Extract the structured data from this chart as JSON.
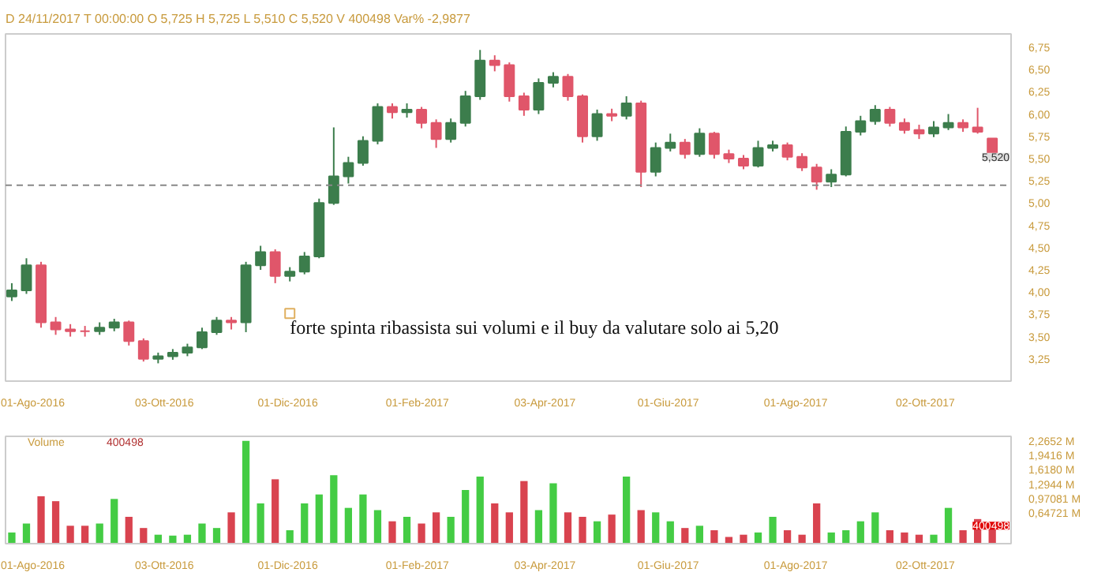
{
  "chart_data": [
    {
      "type": "candlestick",
      "annotations": [
        "D 24/11/2017  T 00:00:00  O 5,725  H 5,725  L 5,510  C 5,520  V 400498  Var% -2,9877",
        {
          "text": "forte spinta ribassista sui volumi e il buy da valutare solo ai 5,20",
          "x": "2016-12-02",
          "y": 3.76
        },
        {
          "text": "5,520",
          "x": "2017-11-03",
          "y": 5.52
        }
      ],
      "x": [
        "2016-07-22",
        "2016-07-29",
        "2016-08-05",
        "2016-08-12",
        "2016-08-19",
        "2016-08-26",
        "2016-09-02",
        "2016-09-09",
        "2016-09-16",
        "2016-09-23",
        "2016-09-30",
        "2016-10-07",
        "2016-10-14",
        "2016-10-21",
        "2016-10-28",
        "2016-11-04",
        "2016-11-11",
        "2016-11-18",
        "2016-11-25",
        "2016-12-02",
        "2016-12-09",
        "2016-12-16",
        "2016-12-23",
        "2016-12-30",
        "2017-01-06",
        "2017-01-13",
        "2017-01-20",
        "2017-01-27",
        "2017-02-03",
        "2017-02-10",
        "2017-02-17",
        "2017-02-24",
        "2017-03-03",
        "2017-03-10",
        "2017-03-17",
        "2017-03-24",
        "2017-03-31",
        "2017-04-07",
        "2017-04-14",
        "2017-04-21",
        "2017-04-28",
        "2017-05-05",
        "2017-05-12",
        "2017-05-19",
        "2017-05-26",
        "2017-06-02",
        "2017-06-09",
        "2017-06-16",
        "2017-06-23",
        "2017-06-30",
        "2017-07-07",
        "2017-07-14",
        "2017-07-21",
        "2017-07-28",
        "2017-08-04",
        "2017-08-11",
        "2017-08-18",
        "2017-08-25",
        "2017-09-01",
        "2017-09-08",
        "2017-09-15",
        "2017-09-22",
        "2017-09-29",
        "2017-10-06",
        "2017-10-13",
        "2017-10-20",
        "2017-10-27",
        "2017-11-03"
      ],
      "ohlc": [
        [
          3.95,
          4.1,
          3.9,
          4.02
        ],
        [
          4.02,
          4.38,
          3.98,
          4.3
        ],
        [
          4.3,
          4.34,
          3.6,
          3.66
        ],
        [
          3.66,
          3.72,
          3.52,
          3.58
        ],
        [
          3.58,
          3.64,
          3.5,
          3.56
        ],
        [
          3.56,
          3.62,
          3.5,
          3.56
        ],
        [
          3.56,
          3.66,
          3.52,
          3.6
        ],
        [
          3.6,
          3.7,
          3.56,
          3.66
        ],
        [
          3.66,
          3.68,
          3.4,
          3.45
        ],
        [
          3.45,
          3.48,
          3.22,
          3.25
        ],
        [
          3.25,
          3.32,
          3.2,
          3.28
        ],
        [
          3.28,
          3.36,
          3.24,
          3.32
        ],
        [
          3.32,
          3.42,
          3.28,
          3.38
        ],
        [
          3.38,
          3.6,
          3.36,
          3.55
        ],
        [
          3.55,
          3.72,
          3.52,
          3.68
        ],
        [
          3.68,
          3.72,
          3.58,
          3.66
        ],
        [
          3.66,
          4.34,
          3.55,
          4.3
        ],
        [
          4.3,
          4.52,
          4.25,
          4.45
        ],
        [
          4.45,
          4.48,
          4.1,
          4.18
        ],
        [
          4.18,
          4.28,
          4.12,
          4.23
        ],
        [
          4.23,
          4.45,
          4.2,
          4.4
        ],
        [
          4.4,
          5.05,
          4.38,
          5.0
        ],
        [
          5.0,
          5.85,
          4.98,
          5.3
        ],
        [
          5.3,
          5.52,
          5.22,
          5.45
        ],
        [
          5.45,
          5.75,
          5.42,
          5.7
        ],
        [
          5.7,
          6.12,
          5.66,
          6.08
        ],
        [
          6.08,
          6.12,
          5.95,
          6.02
        ],
        [
          6.02,
          6.12,
          5.96,
          6.05
        ],
        [
          6.05,
          6.08,
          5.84,
          5.9
        ],
        [
          5.9,
          5.94,
          5.62,
          5.72
        ],
        [
          5.72,
          5.95,
          5.68,
          5.9
        ],
        [
          5.9,
          6.26,
          5.86,
          6.2
        ],
        [
          6.2,
          6.72,
          6.16,
          6.6
        ],
        [
          6.6,
          6.66,
          6.48,
          6.55
        ],
        [
          6.55,
          6.58,
          6.14,
          6.2
        ],
        [
          6.2,
          6.24,
          5.98,
          6.05
        ],
        [
          6.05,
          6.4,
          6.0,
          6.35
        ],
        [
          6.35,
          6.47,
          6.3,
          6.42
        ],
        [
          6.42,
          6.45,
          6.15,
          6.2
        ],
        [
          6.2,
          6.22,
          5.68,
          5.75
        ],
        [
          5.75,
          6.05,
          5.7,
          6.0
        ],
        [
          6.0,
          6.06,
          5.92,
          5.98
        ],
        [
          5.98,
          6.2,
          5.94,
          6.12
        ],
        [
          6.12,
          6.15,
          5.18,
          5.35
        ],
        [
          5.35,
          5.68,
          5.3,
          5.62
        ],
        [
          5.62,
          5.78,
          5.58,
          5.68
        ],
        [
          5.68,
          5.72,
          5.5,
          5.55
        ],
        [
          5.55,
          5.84,
          5.52,
          5.78
        ],
        [
          5.78,
          5.8,
          5.5,
          5.55
        ],
        [
          5.55,
          5.6,
          5.45,
          5.5
        ],
        [
          5.5,
          5.54,
          5.38,
          5.42
        ],
        [
          5.42,
          5.7,
          5.4,
          5.62
        ],
        [
          5.62,
          5.7,
          5.58,
          5.65
        ],
        [
          5.65,
          5.68,
          5.48,
          5.52
        ],
        [
          5.52,
          5.56,
          5.36,
          5.4
        ],
        [
          5.4,
          5.44,
          5.15,
          5.24
        ],
        [
          5.24,
          5.38,
          5.18,
          5.32
        ],
        [
          5.32,
          5.86,
          5.3,
          5.8
        ],
        [
          5.8,
          5.98,
          5.76,
          5.92
        ],
        [
          5.92,
          6.1,
          5.88,
          6.05
        ],
        [
          6.05,
          6.08,
          5.86,
          5.9
        ],
        [
          5.9,
          5.95,
          5.78,
          5.82
        ],
        [
          5.82,
          5.88,
          5.72,
          5.78
        ],
        [
          5.78,
          5.92,
          5.74,
          5.85
        ],
        [
          5.85,
          6.0,
          5.82,
          5.9
        ],
        [
          5.9,
          5.94,
          5.8,
          5.85
        ],
        [
          5.85,
          6.07,
          5.78,
          5.8
        ],
        [
          5.725,
          5.725,
          5.51,
          5.52
        ]
      ],
      "colors": [
        "#3c7d4c",
        "#3c7d4c",
        "#e0566a",
        "#e0566a",
        "#e0566a",
        "#e0566a",
        "#3c7d4c",
        "#3c7d4c",
        "#e0566a",
        "#e0566a",
        "#3c7d4c",
        "#3c7d4c",
        "#3c7d4c",
        "#3c7d4c",
        "#3c7d4c",
        "#e0566a",
        "#3c7d4c",
        "#3c7d4c",
        "#e0566a",
        "#3c7d4c",
        "#3c7d4c",
        "#3c7d4c",
        "#3c7d4c",
        "#3c7d4c",
        "#3c7d4c",
        "#3c7d4c",
        "#e0566a",
        "#3c7d4c",
        "#e0566a",
        "#e0566a",
        "#3c7d4c",
        "#3c7d4c",
        "#3c7d4c",
        "#e0566a",
        "#e0566a",
        "#e0566a",
        "#3c7d4c",
        "#3c7d4c",
        "#e0566a",
        "#e0566a",
        "#3c7d4c",
        "#e0566a",
        "#3c7d4c",
        "#e0566a",
        "#3c7d4c",
        "#3c7d4c",
        "#e0566a",
        "#3c7d4c",
        "#e0566a",
        "#e0566a",
        "#e0566a",
        "#3c7d4c",
        "#3c7d4c",
        "#e0566a",
        "#e0566a",
        "#e0566a",
        "#3c7d4c",
        "#3c7d4c",
        "#3c7d4c",
        "#3c7d4c",
        "#e0566a",
        "#e0566a",
        "#e0566a",
        "#3c7d4c",
        "#3c7d4c",
        "#e0566a",
        "#e0566a",
        "#e0566a"
      ],
      "xlim": [
        "2016-07-19",
        "2017-11-12"
      ],
      "xticks": [
        {
          "value": "2016-08-01",
          "label": "01-Ago-2016"
        },
        {
          "value": "2016-10-03",
          "label": "03-Ott-2016"
        },
        {
          "value": "2016-12-01",
          "label": "01-Dic-2016"
        },
        {
          "value": "2017-02-01",
          "label": "01-Feb-2017"
        },
        {
          "value": "2017-04-03",
          "label": "03-Apr-2017"
        },
        {
          "value": "2017-06-01",
          "label": "01-Giu-2017"
        },
        {
          "value": "2017-08-01",
          "label": "01-Ago-2017"
        },
        {
          "value": "2017-10-02",
          "label": "02-Ott-2017"
        }
      ],
      "ylim": [
        3.0,
        6.9
      ],
      "yticks": [
        {
          "value": 3.25,
          "label": "3,25"
        },
        {
          "value": 3.5,
          "label": "3,50"
        },
        {
          "value": 3.75,
          "label": "3,75"
        },
        {
          "value": 4.0,
          "label": "4,00"
        },
        {
          "value": 4.25,
          "label": "4,25"
        },
        {
          "value": 4.5,
          "label": "4,50"
        },
        {
          "value": 4.75,
          "label": "4,75"
        },
        {
          "value": 5.0,
          "label": "5,00"
        },
        {
          "value": 5.25,
          "label": "5,25"
        },
        {
          "value": 5.5,
          "label": "5,50"
        },
        {
          "value": 5.75,
          "label": "5,75"
        },
        {
          "value": 6.0,
          "label": "6,00"
        },
        {
          "value": 6.25,
          "label": "6,25"
        },
        {
          "value": 6.5,
          "label": "6,50"
        },
        {
          "value": 6.75,
          "label": "6,75"
        }
      ],
      "ref_lines": [
        {
          "axis": "y",
          "value": 5.2,
          "color": "#888888",
          "line_style": "dashed"
        }
      ]
    },
    {
      "type": "bar",
      "annotations": [
        "Volume",
        "400498",
        {
          "text": "400498",
          "x": "2017-11-03",
          "y": 0.4
        }
      ],
      "x": [
        "2016-07-22",
        "2016-07-29",
        "2016-08-05",
        "2016-08-12",
        "2016-08-19",
        "2016-08-26",
        "2016-09-02",
        "2016-09-09",
        "2016-09-16",
        "2016-09-23",
        "2016-09-30",
        "2016-10-07",
        "2016-10-14",
        "2016-10-21",
        "2016-10-28",
        "2016-11-04",
        "2016-11-11",
        "2016-11-18",
        "2016-11-25",
        "2016-12-02",
        "2016-12-09",
        "2016-12-16",
        "2016-12-23",
        "2016-12-30",
        "2017-01-06",
        "2017-01-13",
        "2017-01-20",
        "2017-01-27",
        "2017-02-03",
        "2017-02-10",
        "2017-02-17",
        "2017-02-24",
        "2017-03-03",
        "2017-03-10",
        "2017-03-17",
        "2017-03-24",
        "2017-03-31",
        "2017-04-07",
        "2017-04-14",
        "2017-04-21",
        "2017-04-28",
        "2017-05-05",
        "2017-05-12",
        "2017-05-19",
        "2017-05-26",
        "2017-06-02",
        "2017-06-09",
        "2017-06-16",
        "2017-06-23",
        "2017-06-30",
        "2017-07-07",
        "2017-07-14",
        "2017-07-21",
        "2017-07-28",
        "2017-08-04",
        "2017-08-11",
        "2017-08-18",
        "2017-08-25",
        "2017-09-01",
        "2017-09-08",
        "2017-09-15",
        "2017-09-22",
        "2017-09-29",
        "2017-10-06",
        "2017-10-13",
        "2017-10-20",
        "2017-10-27",
        "2017-11-03"
      ],
      "values": [
        0.25,
        0.45,
        1.06,
        0.95,
        0.4,
        0.4,
        0.45,
        1.0,
        0.6,
        0.35,
        0.2,
        0.18,
        0.2,
        0.45,
        0.35,
        0.7,
        2.3,
        0.9,
        1.44,
        0.3,
        0.9,
        1.1,
        1.53,
        0.8,
        1.1,
        0.75,
        0.5,
        0.6,
        0.45,
        0.7,
        0.6,
        1.2,
        1.5,
        0.9,
        0.7,
        1.4,
        0.75,
        1.35,
        0.7,
        0.6,
        0.5,
        0.65,
        1.5,
        0.75,
        0.7,
        0.5,
        0.35,
        0.4,
        0.3,
        0.15,
        0.2,
        0.25,
        0.6,
        0.3,
        0.2,
        0.9,
        0.25,
        0.3,
        0.5,
        0.7,
        0.3,
        0.25,
        0.2,
        0.2,
        0.8,
        0.3,
        0.55,
        0.4
      ],
      "colors": [
        "#44cc44",
        "#44cc44",
        "#d9434f",
        "#d9434f",
        "#d9434f",
        "#d9434f",
        "#44cc44",
        "#44cc44",
        "#d9434f",
        "#d9434f",
        "#44cc44",
        "#44cc44",
        "#44cc44",
        "#44cc44",
        "#44cc44",
        "#d9434f",
        "#44cc44",
        "#44cc44",
        "#d9434f",
        "#44cc44",
        "#44cc44",
        "#44cc44",
        "#44cc44",
        "#44cc44",
        "#44cc44",
        "#44cc44",
        "#d9434f",
        "#44cc44",
        "#d9434f",
        "#d9434f",
        "#44cc44",
        "#44cc44",
        "#44cc44",
        "#d9434f",
        "#d9434f",
        "#d9434f",
        "#44cc44",
        "#44cc44",
        "#d9434f",
        "#d9434f",
        "#44cc44",
        "#d9434f",
        "#44cc44",
        "#d9434f",
        "#44cc44",
        "#44cc44",
        "#d9434f",
        "#44cc44",
        "#d9434f",
        "#d9434f",
        "#d9434f",
        "#44cc44",
        "#44cc44",
        "#d9434f",
        "#d9434f",
        "#d9434f",
        "#44cc44",
        "#44cc44",
        "#44cc44",
        "#44cc44",
        "#d9434f",
        "#d9434f",
        "#d9434f",
        "#44cc44",
        "#44cc44",
        "#d9434f",
        "#d9434f",
        "#d9434f"
      ],
      "xlim": [
        "2016-07-19",
        "2017-11-12"
      ],
      "xticks": [
        {
          "value": "2016-08-01",
          "label": "01-Ago-2016"
        },
        {
          "value": "2016-10-03",
          "label": "03-Ott-2016"
        },
        {
          "value": "2016-12-01",
          "label": "01-Dic-2016"
        },
        {
          "value": "2017-02-01",
          "label": "01-Feb-2017"
        },
        {
          "value": "2017-04-03",
          "label": "03-Apr-2017"
        },
        {
          "value": "2017-06-01",
          "label": "01-Giu-2017"
        },
        {
          "value": "2017-08-01",
          "label": "01-Ago-2017"
        },
        {
          "value": "2017-10-02",
          "label": "02-Ott-2017"
        }
      ],
      "ylim": [
        0,
        2.4
      ],
      "yticks": [
        {
          "value": 0.64721,
          "label": "0,64721 M"
        },
        {
          "value": 0.97081,
          "label": "0,97081 M"
        },
        {
          "value": 1.2944,
          "label": "1,2944 M"
        },
        {
          "value": 1.618,
          "label": "1,6180 M"
        },
        {
          "value": 1.9416,
          "label": "1,9416 M"
        },
        {
          "value": 2.2652,
          "label": "2,2652 M"
        }
      ]
    }
  ]
}
